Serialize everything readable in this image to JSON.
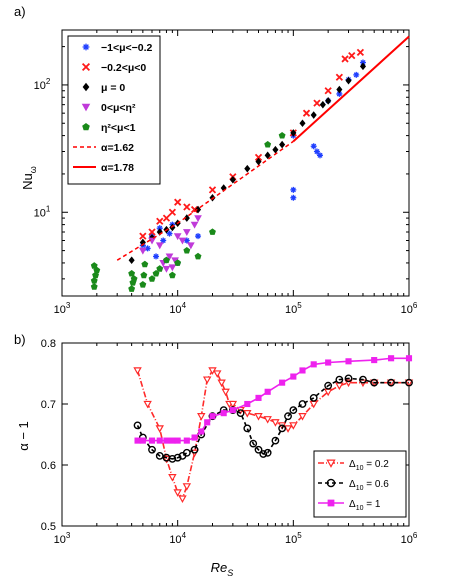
{
  "chart_data": [
    {
      "panel_label": "a)",
      "type": "scatter",
      "xscale": "log",
      "yscale": "log",
      "xlim": [
        1000,
        1000000
      ],
      "ylim": [
        2.2,
        270
      ],
      "xticks": [
        {
          "value": 1000,
          "base": "10",
          "exp": "3"
        },
        {
          "value": 10000,
          "base": "10",
          "exp": "4"
        },
        {
          "value": 100000,
          "base": "10",
          "exp": "5"
        },
        {
          "value": 1000000,
          "base": "10",
          "exp": "6"
        }
      ],
      "yticks": [
        {
          "value": 10,
          "base": "10",
          "exp": "1"
        },
        {
          "value": 100,
          "base": "10",
          "exp": "2"
        }
      ],
      "ylabel": {
        "main": "Nu",
        "sub": "ω"
      },
      "legend": {
        "position": "top-left",
        "entries": [
          {
            "marker": "asterisk",
            "color": "#1f3fff",
            "label": "−1<μ<−0.2"
          },
          {
            "marker": "x",
            "color": "#ff1a1a",
            "label": "−0.2<μ<0"
          },
          {
            "marker": "diamond",
            "color": "#000000",
            "label": "μ = 0"
          },
          {
            "marker": "triangle-down",
            "color": "#c03ad9",
            "label": "0<μ<η²"
          },
          {
            "marker": "pentagon",
            "color": "#1a8a1a",
            "label": "η²<μ<1"
          },
          {
            "marker": "dashed-line",
            "color": "#ff0000",
            "label": "α=1.62"
          },
          {
            "marker": "solid-line",
            "color": "#ff0000",
            "label": "α=1.78"
          }
        ]
      },
      "series": [
        {
          "name": "−1<μ<−0.2",
          "marker": "asterisk",
          "color": "#1f3fff",
          "x": [
            5000,
            5500,
            6000,
            6500,
            7000,
            7500,
            8000,
            8500,
            9000,
            10000,
            12000,
            15000,
            100000,
            100000,
            100000,
            150000,
            160000,
            170000,
            200000,
            250000,
            300000,
            350000,
            400000
          ],
          "y": [
            5.5,
            5.2,
            6.5,
            4.5,
            7.5,
            6.0,
            4.2,
            6.8,
            8.0,
            4.0,
            6.0,
            6.5,
            40,
            15,
            13,
            33,
            30,
            28,
            75,
            85,
            110,
            120,
            150
          ]
        },
        {
          "name": "−0.2<μ<0",
          "marker": "x",
          "color": "#ff1a1a",
          "x": [
            5000,
            6000,
            7000,
            8000,
            9000,
            10000,
            12000,
            14000,
            20000,
            30000,
            50000,
            100000,
            130000,
            160000,
            200000,
            250000,
            280000,
            320000,
            380000
          ],
          "y": [
            6.5,
            7.0,
            8.5,
            9.0,
            10.0,
            12.0,
            11.0,
            10.5,
            15.0,
            19.0,
            27.0,
            42.0,
            60.0,
            72.0,
            90.0,
            115.0,
            160.0,
            170.0,
            180.0
          ]
        },
        {
          "name": "μ = 0",
          "marker": "diamond",
          "color": "#000000",
          "x": [
            4000,
            5000,
            6000,
            7000,
            8000,
            9000,
            10000,
            12000,
            15000,
            20000,
            25000,
            30000,
            40000,
            50000,
            60000,
            70000,
            80000,
            100000,
            120000,
            150000,
            180000,
            200000,
            250000,
            300000,
            400000
          ],
          "y": [
            4.2,
            5.8,
            6.3,
            7.0,
            7.3,
            7.6,
            8.2,
            9.0,
            10.5,
            13.0,
            15.5,
            18.0,
            22.0,
            25.0,
            28.0,
            31.0,
            34.0,
            42.0,
            50.0,
            58.0,
            70.0,
            75.0,
            92.0,
            108.0,
            140.0
          ]
        },
        {
          "name": "0<μ<η²",
          "marker": "triangle-down",
          "color": "#c03ad9",
          "x": [
            5000,
            6000,
            7000,
            7500,
            8000,
            8500,
            9000,
            9500,
            10000,
            11000,
            12000,
            13000,
            14000,
            15000
          ],
          "y": [
            5.0,
            6.0,
            5.5,
            4.0,
            3.6,
            4.5,
            3.7,
            4.2,
            6.5,
            6.0,
            7.0,
            5.5,
            8.0,
            9.0
          ]
        },
        {
          "name": "η²<μ<1",
          "marker": "pentagon",
          "color": "#1a8a1a",
          "x": [
            1900,
            1900,
            1950,
            2000,
            1900,
            4000,
            4100,
            4200,
            4000,
            5000,
            5100,
            5200,
            6000,
            6500,
            7000,
            8000,
            9000,
            10000,
            12000,
            15000,
            20000,
            60000,
            80000
          ],
          "y": [
            2.6,
            2.9,
            3.2,
            3.5,
            3.8,
            2.5,
            2.8,
            3.0,
            3.3,
            2.7,
            3.2,
            3.9,
            3.0,
            3.3,
            3.6,
            4.2,
            3.2,
            4.0,
            5.0,
            4.5,
            7.0,
            34.0,
            40.0
          ]
        },
        {
          "name": "α=1.62",
          "style": "dashed",
          "color": "#ff0000",
          "x": [
            3000,
            10000,
            100000
          ],
          "y": [
            4.2,
            8.2,
            36
          ]
        },
        {
          "name": "α=1.78",
          "style": "solid",
          "color": "#ff0000",
          "x": [
            100000,
            1000000
          ],
          "y": [
            36,
            240
          ]
        }
      ]
    },
    {
      "panel_label": "b)",
      "type": "line",
      "xscale": "log",
      "yscale": "linear",
      "xlim": [
        1000,
        1000000
      ],
      "ylim": [
        0.5,
        0.8
      ],
      "xticks": [
        {
          "value": 1000,
          "base": "10",
          "exp": "3"
        },
        {
          "value": 10000,
          "base": "10",
          "exp": "4"
        },
        {
          "value": 100000,
          "base": "10",
          "exp": "5"
        },
        {
          "value": 1000000,
          "base": "10",
          "exp": "6"
        }
      ],
      "yticks": [
        {
          "value": 0.5,
          "label": "0.5"
        },
        {
          "value": 0.6,
          "label": "0.6"
        },
        {
          "value": 0.7,
          "label": "0.7"
        },
        {
          "value": 0.8,
          "label": "0.8"
        }
      ],
      "ylabel": "α − 1",
      "xlabel": {
        "main": "Re",
        "sub": "S"
      },
      "legend": {
        "position": "bottom-right",
        "entries": [
          {
            "marker": "triangle-down",
            "color": "#ff2a2a",
            "line": "dash-dot",
            "label_pre": "Δ",
            "label_sub": "10",
            "label_post": " = 0.2"
          },
          {
            "marker": "circle",
            "color": "#000000",
            "line": "dashed",
            "label_pre": "Δ",
            "label_sub": "10",
            "label_post": " = 0.6"
          },
          {
            "marker": "square",
            "color": "#ee22ee",
            "line": "solid",
            "label_pre": "Δ",
            "label_sub": "10",
            "label_post": " = 1"
          }
        ]
      },
      "series": [
        {
          "name": "Δ_10 = 0.2",
          "color": "#ff2a2a",
          "marker": "triangle-down",
          "x": [
            4500,
            5500,
            7000,
            8000,
            9000,
            10000,
            11000,
            12000,
            14000,
            16000,
            18000,
            20000,
            22000,
            24000,
            26000,
            28000,
            30000,
            35000,
            40000,
            50000,
            60000,
            70000,
            80000,
            90000,
            100000,
            120000,
            150000,
            200000,
            250000,
            300000,
            400000,
            500000,
            700000,
            1000000
          ],
          "y": [
            0.755,
            0.7,
            0.66,
            0.61,
            0.58,
            0.555,
            0.545,
            0.565,
            0.62,
            0.68,
            0.74,
            0.755,
            0.75,
            0.735,
            0.72,
            0.7,
            0.7,
            0.69,
            0.685,
            0.68,
            0.675,
            0.67,
            0.665,
            0.66,
            0.665,
            0.68,
            0.7,
            0.72,
            0.73,
            0.735,
            0.735,
            0.735,
            0.735,
            0.735
          ]
        },
        {
          "name": "Δ_10 = 0.6",
          "color": "#000000",
          "marker": "circle",
          "x": [
            4500,
            5000,
            6000,
            7000,
            8000,
            9000,
            10000,
            11000,
            12000,
            14000,
            16000,
            20000,
            25000,
            30000,
            35000,
            40000,
            45000,
            50000,
            55000,
            60000,
            70000,
            80000,
            90000,
            100000,
            120000,
            150000,
            200000,
            250000,
            300000,
            400000,
            500000,
            700000,
            1000000
          ],
          "y": [
            0.665,
            0.645,
            0.625,
            0.615,
            0.612,
            0.61,
            0.612,
            0.615,
            0.62,
            0.625,
            0.65,
            0.68,
            0.69,
            0.69,
            0.685,
            0.66,
            0.635,
            0.625,
            0.618,
            0.62,
            0.64,
            0.66,
            0.68,
            0.69,
            0.7,
            0.71,
            0.73,
            0.74,
            0.742,
            0.74,
            0.735,
            0.735,
            0.735
          ]
        },
        {
          "name": "Δ_10 = 1",
          "color": "#ee22ee",
          "marker": "square",
          "x": [
            4500,
            5000,
            6000,
            7000,
            8000,
            9000,
            10000,
            12000,
            14000,
            16000,
            18000,
            20000,
            25000,
            30000,
            40000,
            50000,
            60000,
            80000,
            100000,
            120000,
            150000,
            200000,
            300000,
            500000,
            700000,
            1000000
          ],
          "y": [
            0.64,
            0.64,
            0.64,
            0.64,
            0.64,
            0.64,
            0.64,
            0.64,
            0.645,
            0.655,
            0.67,
            0.68,
            0.685,
            0.69,
            0.7,
            0.71,
            0.72,
            0.735,
            0.745,
            0.755,
            0.765,
            0.768,
            0.77,
            0.772,
            0.775,
            0.775
          ]
        }
      ]
    }
  ]
}
